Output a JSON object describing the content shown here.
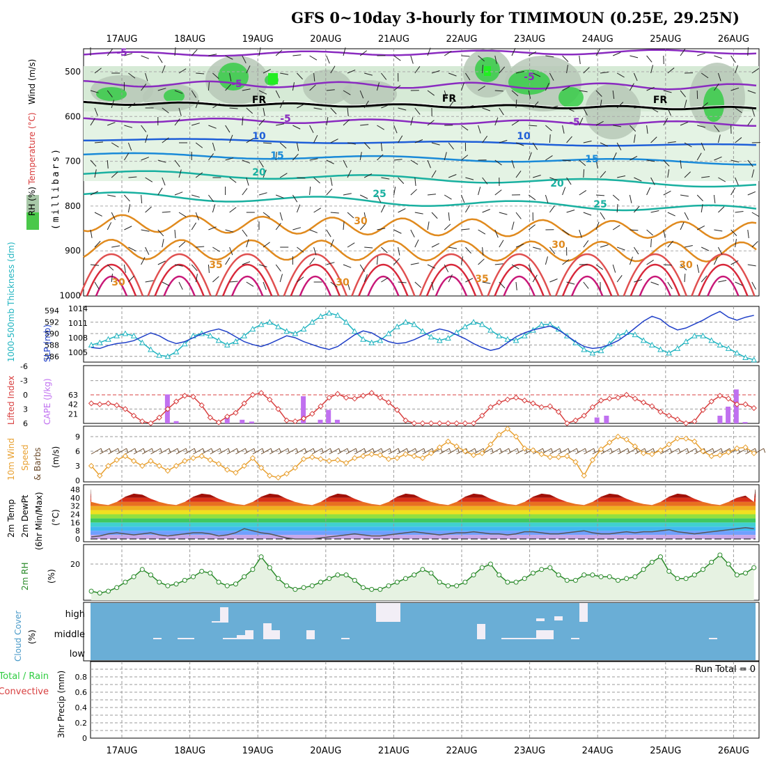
{
  "title": "GFS 0~10day 3-hourly for TIMIMOUN (0.25E, 29.25N)",
  "dates": [
    "17AUG",
    "18AUG",
    "19AUG",
    "20AUG",
    "21AUG",
    "22AUG",
    "23AUG",
    "24AUG",
    "25AUG",
    "26AUG"
  ],
  "colors": {
    "rh_green": "#2ecc40",
    "temp_purple": "#8a2bc0",
    "temp_blue": "#1f5fd8",
    "temp_teal": "#19b0a0",
    "temp_orange": "#e08a1e",
    "temp_red": "#d8283a",
    "slp": "#2040c8",
    "thickness": "#20b4c0",
    "cape": "#c070f0",
    "lifted": "#d84040",
    "wind": "#e8a030",
    "barb": "#6b4a2a",
    "rh2m": "#2a8a2a",
    "cloud": "#6aaed6",
    "cloud_fill": "#f2eef6"
  },
  "panels": {
    "upper": {
      "labels": [
        "RH (%)",
        "Temperature (°C)",
        "Wind (m/s)"
      ],
      "ylabel": "(millibars)",
      "ticks": [
        "500",
        "600",
        "700",
        "800",
        "900",
        "1000"
      ],
      "contour_labels": [
        "-5",
        "-5",
        "-5",
        "-5",
        "-5",
        "FR",
        "FR",
        "FR",
        "10",
        "10",
        "15",
        "15",
        "20",
        "20",
        "25",
        "25",
        "30",
        "30",
        "30",
        "35",
        "35",
        "30",
        "30"
      ]
    },
    "slp": {
      "left_label": "1000-500mb Thickness (dm)",
      "right_label": "SLP (mb)",
      "left_ticks": [
        "594",
        "592",
        "590",
        "588",
        "586"
      ],
      "right_ticks": [
        "1014",
        "1011",
        "1008",
        "1005"
      ]
    },
    "cape": {
      "left_label": "Lifted Index",
      "right_label": "CAPE (J/kg)",
      "left_ticks": [
        "-6",
        "-3",
        "0",
        "3",
        "6"
      ],
      "right_ticks": [
        "63",
        "42",
        "21"
      ]
    },
    "wind": {
      "labels": [
        "10m Wind",
        "Speed",
        "& Barbs"
      ],
      "unit": "(m/s)",
      "ticks": [
        "9",
        "6",
        "3",
        "0"
      ]
    },
    "temp": {
      "labels": [
        "2m Temp",
        "2m DewPt",
        "(6hr Min/Max)"
      ],
      "unit": "(°C)",
      "ticks": [
        "48",
        "40",
        "32",
        "24",
        "16",
        "8",
        "0"
      ]
    },
    "rh": {
      "label": "2m RH",
      "unit": "(%)",
      "ticks": [
        "20"
      ]
    },
    "cloud": {
      "label": "Cloud Cover",
      "unit": "(%)",
      "levels": [
        "high",
        "middle",
        "low"
      ]
    },
    "precip": {
      "labels": [
        "Total / Rain",
        "Convective"
      ],
      "ylabel": "3hr Precip (mm)",
      "ticks": [
        "0.8",
        "0.6",
        "0.4",
        "0.2",
        "0"
      ],
      "run_total": "Run Total = 0"
    }
  },
  "chart_data": {
    "type": "line",
    "x_times_days": [
      0.0,
      0.125,
      0.25,
      0.375,
      0.5,
      0.625,
      0.75,
      0.875,
      1.0,
      1.125,
      1.25,
      1.375,
      1.5,
      1.625,
      1.75,
      1.875,
      2.0,
      2.125,
      2.25,
      2.375,
      2.5,
      2.625,
      2.75,
      2.875,
      3.0,
      3.125,
      3.25,
      3.375,
      3.5,
      3.625,
      3.75,
      3.875,
      4.0,
      4.125,
      4.25,
      4.375,
      4.5,
      4.625,
      4.75,
      4.875,
      5.0,
      5.125,
      5.25,
      5.375,
      5.5,
      5.625,
      5.75,
      5.875,
      6.0,
      6.125,
      6.25,
      6.375,
      6.5,
      6.625,
      6.75,
      6.875,
      7.0,
      7.125,
      7.25,
      7.375,
      7.5,
      7.625,
      7.75,
      7.875,
      8.0,
      8.125,
      8.25,
      8.375,
      8.5,
      8.625,
      8.75,
      8.875,
      9.0,
      9.125,
      9.25,
      9.375,
      9.5,
      9.625,
      9.75
    ],
    "series": [
      {
        "name": "Thickness",
        "values": [
          588.0,
          588.4,
          589.0,
          589.6,
          590.0,
          589.6,
          588.4,
          587.2,
          586.2,
          586.0,
          586.8,
          588.2,
          589.6,
          590.0,
          589.6,
          588.8,
          588.0,
          588.6,
          589.6,
          590.8,
          591.6,
          592.0,
          591.2,
          590.4,
          590.0,
          590.8,
          592.0,
          593.0,
          593.6,
          593.2,
          592.0,
          590.4,
          589.0,
          588.4,
          588.8,
          590.0,
          591.2,
          592.0,
          591.6,
          590.4,
          589.4,
          588.8,
          589.2,
          590.2,
          591.2,
          592.0,
          591.6,
          590.6,
          589.6,
          589.0,
          588.8,
          589.6,
          590.6,
          591.6,
          591.6,
          590.8,
          589.6,
          588.4,
          587.2,
          586.6,
          587.0,
          588.2,
          589.6,
          590.2,
          589.8,
          588.8,
          588.0,
          587.2,
          586.6,
          587.4,
          588.6,
          589.6,
          589.6,
          588.8,
          588.0,
          587.4,
          586.6,
          585.8,
          585.4
        ]
      },
      {
        "name": "SLP",
        "values": [
          1006.0,
          1005.8,
          1006.4,
          1006.8,
          1007.0,
          1007.4,
          1008.2,
          1009.0,
          1008.4,
          1007.4,
          1006.8,
          1007.2,
          1008.0,
          1008.8,
          1009.4,
          1009.8,
          1009.2,
          1008.2,
          1007.2,
          1006.6,
          1006.2,
          1006.8,
          1007.6,
          1008.4,
          1008.0,
          1007.2,
          1006.6,
          1006.0,
          1005.6,
          1006.2,
          1007.4,
          1008.6,
          1009.4,
          1009.0,
          1008.0,
          1007.2,
          1006.8,
          1007.0,
          1007.6,
          1008.4,
          1009.2,
          1009.8,
          1009.4,
          1008.6,
          1007.8,
          1006.8,
          1006.0,
          1005.4,
          1005.8,
          1007.0,
          1008.2,
          1009.0,
          1009.6,
          1010.0,
          1010.4,
          1009.6,
          1008.4,
          1007.2,
          1006.2,
          1005.8,
          1006.0,
          1006.6,
          1007.4,
          1008.6,
          1010.0,
          1011.4,
          1012.4,
          1011.8,
          1010.4,
          1009.6,
          1010.0,
          1010.8,
          1011.6,
          1012.6,
          1013.4,
          1012.2,
          1011.6,
          1012.2,
          1012.6
        ]
      },
      {
        "name": "Lifted Index",
        "values": [
          1.8,
          2.0,
          1.8,
          2.2,
          3.0,
          4.4,
          5.6,
          6.0,
          4.8,
          3.0,
          1.4,
          0.2,
          0.4,
          2.2,
          4.8,
          5.8,
          4.6,
          3.8,
          1.8,
          0.0,
          -0.4,
          1.0,
          3.0,
          5.4,
          5.6,
          5.0,
          4.0,
          2.4,
          0.6,
          -0.2,
          0.6,
          0.8,
          0.2,
          -0.4,
          0.6,
          1.6,
          3.2,
          5.4,
          6.0,
          6.0,
          6.0,
          6.0,
          6.0,
          6.0,
          6.0,
          6.0,
          4.4,
          2.6,
          1.6,
          1.0,
          0.6,
          1.2,
          1.8,
          2.6,
          2.4,
          3.6,
          6.0,
          5.4,
          4.4,
          2.6,
          1.2,
          0.8,
          0.6,
          0.0,
          0.8,
          1.6,
          2.4,
          3.6,
          4.4,
          5.2,
          6.0,
          5.6,
          3.2,
          1.4,
          0.2,
          0.8,
          2.0,
          2.0,
          2.8
        ]
      },
      {
        "name": "CAPE",
        "values": [
          0,
          0,
          0,
          0,
          0,
          0,
          0,
          0,
          0,
          0,
          0,
          0,
          0,
          0,
          0,
          0,
          0,
          0,
          0,
          0,
          0,
          0,
          0,
          0,
          0,
          0,
          0,
          0,
          0,
          0,
          0,
          0,
          0,
          0,
          0,
          0,
          0,
          0,
          0,
          0,
          0,
          0,
          0,
          0,
          0,
          0,
          0,
          0,
          0,
          0,
          0,
          0,
          0,
          0,
          0,
          0,
          0,
          0,
          0,
          0,
          0,
          0,
          0,
          0,
          0,
          0,
          0,
          0,
          0,
          0,
          0,
          0,
          0,
          0,
          0,
          0,
          0,
          0,
          0
        ]
      },
      {
        "name": "Wind Speed",
        "values": [
          3.0,
          1.0,
          3.0,
          4.2,
          5.0,
          4.0,
          3.0,
          4.0,
          3.0,
          2.0,
          3.0,
          4.0,
          4.6,
          5.0,
          4.2,
          3.4,
          2.2,
          1.6,
          3.0,
          4.6,
          2.6,
          1.0,
          0.6,
          1.4,
          2.6,
          4.4,
          4.8,
          4.4,
          4.0,
          4.2,
          3.6,
          4.6,
          5.0,
          5.4,
          5.2,
          4.4,
          4.6,
          5.4,
          5.0,
          4.6,
          5.6,
          6.8,
          8.0,
          7.0,
          6.0,
          5.2,
          5.6,
          7.4,
          9.4,
          10.6,
          9.0,
          6.6,
          6.2,
          5.4,
          4.8,
          4.8,
          5.0,
          3.8,
          1.0,
          4.2,
          6.4,
          7.8,
          9.0,
          8.4,
          7.0,
          5.6,
          5.4,
          6.2,
          7.4,
          8.6,
          8.6,
          8.0,
          6.0,
          5.0,
          5.2,
          5.8,
          6.6,
          6.8,
          5.6
        ]
      },
      {
        "name": "2m Temp",
        "values": [
          36,
          34,
          33,
          36,
          41,
          44,
          43,
          39,
          36,
          34,
          33,
          36,
          41,
          44,
          43,
          39,
          36,
          34,
          33,
          36,
          41,
          44,
          43,
          39,
          36,
          34,
          33,
          36,
          41,
          44,
          43,
          39,
          36,
          34,
          33,
          36,
          41,
          44,
          43,
          39,
          36,
          34,
          33,
          36,
          41,
          44,
          43,
          39,
          36,
          34,
          33,
          36,
          41,
          44,
          43,
          39,
          36,
          34,
          33,
          36,
          41,
          44,
          43,
          39,
          36,
          34,
          33,
          36,
          41,
          44,
          43,
          39,
          36,
          34,
          33,
          36,
          40,
          42,
          36
        ]
      },
      {
        "name": "2m DewPt",
        "values": [
          2,
          3,
          5,
          6,
          5,
          4,
          5,
          6,
          4,
          3,
          4,
          5,
          6,
          6,
          5,
          3,
          4,
          6,
          10,
          8,
          6,
          5,
          3,
          1,
          0,
          0,
          0,
          1,
          2,
          3,
          4,
          5,
          4,
          3,
          3,
          4,
          5,
          6,
          7,
          6,
          5,
          4,
          5,
          6,
          6,
          7,
          6,
          5,
          5,
          4,
          5,
          7,
          7,
          6,
          5,
          5,
          6,
          7,
          8,
          6,
          5,
          5,
          6,
          7,
          6,
          7,
          7,
          8,
          9,
          7,
          6,
          5,
          6,
          7,
          8,
          9,
          10,
          11,
          10
        ]
      },
      {
        "name": "2m RH",
        "values": [
          5,
          4,
          5,
          7,
          10,
          13,
          17,
          14,
          10,
          8,
          9,
          11,
          13,
          16,
          15,
          10,
          8,
          9,
          13,
          17,
          24,
          18,
          12,
          8,
          6,
          7,
          8,
          10,
          12,
          14,
          14,
          11,
          7,
          6,
          6,
          8,
          10,
          12,
          14,
          17,
          15,
          10,
          8,
          8,
          10,
          14,
          18,
          20,
          14,
          10,
          10,
          12,
          15,
          17,
          18,
          14,
          11,
          11,
          14,
          14,
          13,
          13,
          11,
          12,
          13,
          17,
          21,
          24,
          16,
          12,
          12,
          14,
          17,
          21,
          25,
          20,
          14,
          15,
          18
        ]
      }
    ],
    "ylabel": "(millibars)",
    "ylim": [
      1000,
      450
    ]
  }
}
